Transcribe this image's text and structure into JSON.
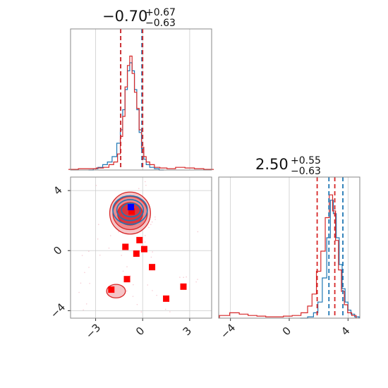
{
  "chart_data": [
    {
      "type": "histogram",
      "parameter_index": 0,
      "title": {
        "value": "−0.70",
        "upper": "+0.67",
        "lower": "−0.63"
      },
      "xlim": [
        -4.6,
        4.4
      ],
      "x_ticks": [
        -3,
        0,
        3
      ],
      "grid": true,
      "quantile_lines": [
        {
          "color": "#1f77b4",
          "values": [
            -1.4,
            -0.05
          ]
        },
        {
          "color": "#d62728",
          "values": [
            -1.4,
            0.0
          ]
        }
      ],
      "series": [
        {
          "color": "#1f77b4",
          "bin_centers": [
            -3.3,
            -3.0,
            -2.7,
            -2.4,
            -2.1,
            -1.8,
            -1.5,
            -1.35,
            -1.2,
            -1.05,
            -0.9,
            -0.75,
            -0.6,
            -0.45,
            -0.3,
            -0.15,
            0.0,
            0.15,
            0.3,
            0.6,
            0.9,
            1.2
          ],
          "heights": [
            0,
            0.01,
            0.02,
            0.04,
            0.06,
            0.1,
            0.2,
            0.3,
            0.45,
            0.6,
            0.74,
            0.8,
            0.74,
            0.6,
            0.45,
            0.28,
            0.16,
            0.08,
            0.04,
            0.02,
            0.01,
            0
          ]
        },
        {
          "color": "#d62728",
          "bin_centers": [
            -4.4,
            -3.8,
            -3.2,
            -2.7,
            -2.3,
            -2.0,
            -1.7,
            -1.5,
            -1.35,
            -1.2,
            -1.05,
            -0.9,
            -0.75,
            -0.6,
            -0.45,
            -0.3,
            -0.15,
            0.0,
            0.15,
            0.3,
            0.6,
            0.9,
            1.3,
            1.8,
            2.4,
            3.0,
            3.6,
            4.2
          ],
          "heights": [
            0.005,
            0.01,
            0.01,
            0.015,
            0.02,
            0.04,
            0.06,
            0.12,
            0.25,
            0.4,
            0.62,
            0.78,
            0.85,
            0.72,
            0.58,
            0.46,
            0.3,
            0.17,
            0.1,
            0.06,
            0.04,
            0.02,
            0.015,
            0.01,
            0.02,
            0.015,
            0.01,
            0.005
          ]
        }
      ]
    },
    {
      "type": "scatter",
      "parameter_indices": [
        0,
        1
      ],
      "xlim": [
        -4.6,
        4.4
      ],
      "ylim": [
        -4.5,
        4.9
      ],
      "x_ticks": [
        -3,
        0,
        3
      ],
      "y_ticks": [
        -4,
        0,
        4
      ],
      "grid": true,
      "truth_point": {
        "color": "#0000ff",
        "x": -0.75,
        "y": 2.9
      },
      "markers": {
        "color": "#ff0000",
        "points": [
          [
            -0.7,
            2.6
          ],
          [
            -0.2,
            0.7
          ],
          [
            -1.1,
            0.25
          ],
          [
            -0.4,
            -0.2
          ],
          [
            0.1,
            0.1
          ],
          [
            0.6,
            -1.1
          ],
          [
            -1.0,
            -1.9
          ],
          [
            -2.0,
            -2.6
          ],
          [
            1.5,
            -3.2
          ],
          [
            2.6,
            -2.4
          ]
        ]
      },
      "contours": [
        {
          "series": "red",
          "level": 1,
          "center": [
            -0.8,
            2.5
          ],
          "radii": [
            1.3,
            1.4
          ]
        },
        {
          "series": "red",
          "level": 2,
          "center": [
            -0.8,
            2.5
          ],
          "radii": [
            1.1,
            1.1
          ]
        },
        {
          "series": "red",
          "level": 3,
          "center": [
            -0.8,
            2.45
          ],
          "radii": [
            0.8,
            0.75
          ]
        },
        {
          "series": "red",
          "level": 1,
          "center": [
            -1.7,
            -2.7
          ],
          "radii": [
            0.6,
            0.45
          ]
        },
        {
          "series": "blue",
          "level": 1,
          "center": [
            -0.8,
            2.7
          ],
          "radii": [
            1.1,
            0.95
          ]
        },
        {
          "series": "blue",
          "level": 2,
          "center": [
            -0.8,
            2.7
          ],
          "radii": [
            0.85,
            0.7
          ]
        },
        {
          "series": "blue",
          "level": 3,
          "center": [
            -0.75,
            2.7
          ],
          "radii": [
            0.6,
            0.45
          ]
        }
      ]
    },
    {
      "type": "histogram",
      "parameter_index": 1,
      "title": {
        "value": "2.50",
        "upper": "+0.55",
        "lower": "−0.63"
      },
      "xlim": [
        -4.8,
        4.8
      ],
      "x_ticks": [
        -4,
        0,
        4
      ],
      "grid": true,
      "quantile_lines": [
        {
          "color": "#1f77b4",
          "values": [
            2.7,
            3.65
          ]
        },
        {
          "color": "#d62728",
          "values": [
            1.9,
            3.1
          ]
        }
      ],
      "series": [
        {
          "color": "#1f77b4",
          "bin_centers": [
            1.0,
            1.5,
            1.8,
            2.1,
            2.4,
            2.7,
            2.9,
            3.1,
            3.3,
            3.5,
            3.7,
            3.9,
            4.1,
            4.3,
            4.6
          ],
          "heights": [
            0,
            0.01,
            0.04,
            0.12,
            0.3,
            0.6,
            0.88,
            0.78,
            0.6,
            0.4,
            0.22,
            0.12,
            0.06,
            0.03,
            0.01
          ]
        },
        {
          "color": "#d62728",
          "bin_centers": [
            -4.4,
            -3.7,
            -3.1,
            -2.5,
            -1.9,
            -1.3,
            -0.7,
            -0.1,
            0.5,
            1.1,
            1.4,
            1.7,
            2.0,
            2.3,
            2.6,
            2.85,
            3.05,
            3.25,
            3.45,
            3.65,
            3.85,
            4.1,
            4.4
          ],
          "heights": [
            0.02,
            0.04,
            0.03,
            0.02,
            0.015,
            0.01,
            0.01,
            0.015,
            0.02,
            0.04,
            0.09,
            0.18,
            0.35,
            0.5,
            0.75,
            0.92,
            0.8,
            0.58,
            0.36,
            0.2,
            0.1,
            0.04,
            0.02
          ]
        }
      ]
    }
  ]
}
